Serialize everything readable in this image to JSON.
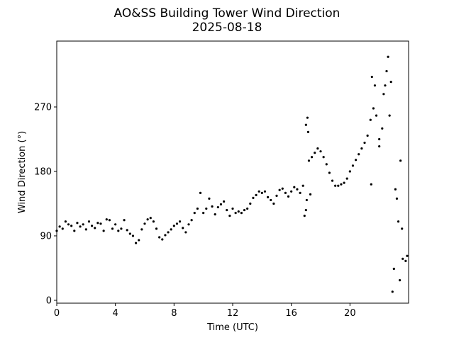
{
  "chart_data": {
    "type": "scatter",
    "title": "AO&SS Building Tower Wind Direction",
    "subtitle": "2025-08-18",
    "xlabel": "Time (UTC)",
    "ylabel": "Wind Direction (°)",
    "xlim": [
      0,
      24
    ],
    "ylim": [
      -4,
      362
    ],
    "xticks": [
      0,
      4,
      8,
      12,
      16,
      20
    ],
    "yticks": [
      0,
      90,
      180,
      270
    ],
    "grid": false,
    "marker_color": "#000000",
    "series": [
      {
        "points": [
          [
            0.0,
            97
          ],
          [
            0.2,
            103
          ],
          [
            0.4,
            100
          ],
          [
            0.6,
            110
          ],
          [
            0.8,
            106
          ],
          [
            1.0,
            104
          ],
          [
            1.2,
            97
          ],
          [
            1.4,
            108
          ],
          [
            1.6,
            103
          ],
          [
            1.8,
            106
          ],
          [
            2.0,
            99
          ],
          [
            2.2,
            110
          ],
          [
            2.4,
            104
          ],
          [
            2.6,
            101
          ],
          [
            2.8,
            108
          ],
          [
            3.0,
            107
          ],
          [
            3.2,
            97
          ],
          [
            3.4,
            113
          ],
          [
            3.6,
            112
          ],
          [
            3.8,
            100
          ],
          [
            4.0,
            106
          ],
          [
            4.2,
            97
          ],
          [
            4.4,
            100
          ],
          [
            4.6,
            112
          ],
          [
            4.8,
            98
          ],
          [
            5.0,
            93
          ],
          [
            5.2,
            90
          ],
          [
            5.4,
            80
          ],
          [
            5.6,
            84
          ],
          [
            5.8,
            99
          ],
          [
            6.0,
            107
          ],
          [
            6.2,
            113
          ],
          [
            6.4,
            115
          ],
          [
            6.6,
            110
          ],
          [
            6.8,
            100
          ],
          [
            7.0,
            88
          ],
          [
            7.2,
            85
          ],
          [
            7.4,
            91
          ],
          [
            7.6,
            95
          ],
          [
            7.8,
            99
          ],
          [
            8.0,
            104
          ],
          [
            8.2,
            107
          ],
          [
            8.4,
            110
          ],
          [
            8.6,
            101
          ],
          [
            8.8,
            95
          ],
          [
            9.0,
            106
          ],
          [
            9.2,
            112
          ],
          [
            9.4,
            122
          ],
          [
            9.6,
            128
          ],
          [
            9.8,
            150
          ],
          [
            10.0,
            122
          ],
          [
            10.2,
            128
          ],
          [
            10.4,
            142
          ],
          [
            10.6,
            131
          ],
          [
            10.8,
            120
          ],
          [
            11.0,
            130
          ],
          [
            11.2,
            134
          ],
          [
            11.4,
            138
          ],
          [
            11.6,
            126
          ],
          [
            11.8,
            118
          ],
          [
            12.0,
            128
          ],
          [
            12.2,
            122
          ],
          [
            12.4,
            124
          ],
          [
            12.6,
            122
          ],
          [
            12.8,
            126
          ],
          [
            13.0,
            128
          ],
          [
            13.2,
            135
          ],
          [
            13.4,
            143
          ],
          [
            13.6,
            147
          ],
          [
            13.8,
            152
          ],
          [
            14.0,
            150
          ],
          [
            14.2,
            152
          ],
          [
            14.4,
            144
          ],
          [
            14.6,
            140
          ],
          [
            14.8,
            135
          ],
          [
            15.0,
            146
          ],
          [
            15.2,
            154
          ],
          [
            15.4,
            156
          ],
          [
            15.6,
            150
          ],
          [
            15.8,
            145
          ],
          [
            16.0,
            152
          ],
          [
            16.2,
            158
          ],
          [
            16.4,
            155
          ],
          [
            16.6,
            150
          ],
          [
            16.8,
            160
          ],
          [
            17.0,
            245
          ],
          [
            17.2,
            195
          ],
          [
            17.4,
            200
          ],
          [
            17.6,
            206
          ],
          [
            17.8,
            212
          ],
          [
            18.0,
            208
          ],
          [
            18.2,
            200
          ],
          [
            18.4,
            190
          ],
          [
            18.6,
            178
          ],
          [
            18.8,
            167
          ],
          [
            19.0,
            160
          ],
          [
            19.2,
            160
          ],
          [
            19.4,
            162
          ],
          [
            19.6,
            164
          ],
          [
            19.8,
            170
          ],
          [
            20.0,
            180
          ],
          [
            20.2,
            188
          ],
          [
            20.4,
            196
          ],
          [
            20.6,
            204
          ],
          [
            20.8,
            212
          ],
          [
            21.0,
            220
          ],
          [
            21.2,
            230
          ],
          [
            21.4,
            252
          ],
          [
            21.6,
            268
          ],
          [
            21.8,
            258
          ],
          [
            22.0,
            225
          ],
          [
            22.2,
            240
          ],
          [
            22.4,
            300
          ],
          [
            22.6,
            340
          ],
          [
            22.8,
            305
          ],
          [
            23.0,
            44
          ],
          [
            23.2,
            142
          ],
          [
            23.4,
            28
          ],
          [
            23.6,
            58
          ],
          [
            23.8,
            55
          ],
          [
            16.9,
            118
          ],
          [
            17.0,
            126
          ],
          [
            17.05,
            140
          ],
          [
            17.1,
            255
          ],
          [
            17.15,
            235
          ],
          [
            17.3,
            148
          ],
          [
            21.45,
            162
          ],
          [
            21.5,
            312
          ],
          [
            21.7,
            300
          ],
          [
            22.0,
            215
          ],
          [
            22.3,
            288
          ],
          [
            22.5,
            320
          ],
          [
            22.7,
            258
          ],
          [
            22.9,
            12
          ],
          [
            23.1,
            155
          ],
          [
            23.3,
            110
          ],
          [
            23.45,
            195
          ],
          [
            23.55,
            100
          ],
          [
            23.9,
            62
          ]
        ]
      }
    ]
  }
}
